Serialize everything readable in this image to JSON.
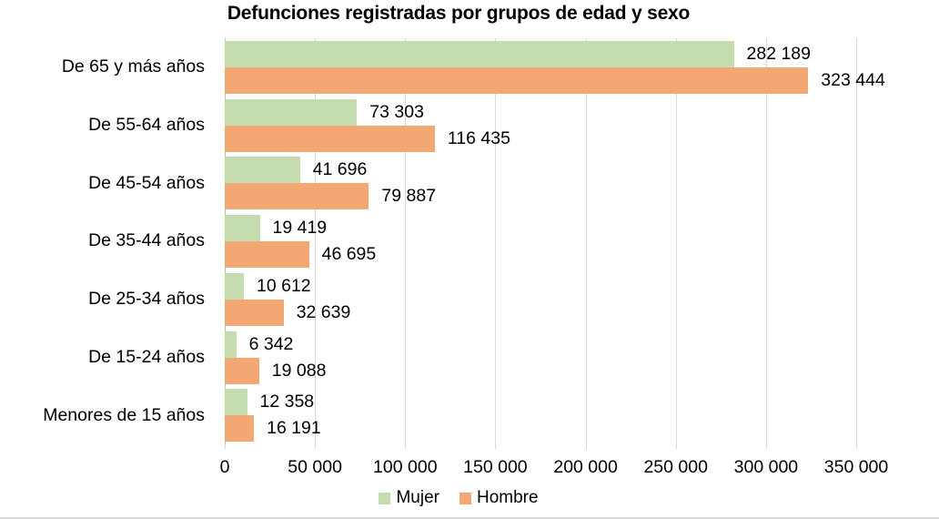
{
  "chart_data": {
    "type": "bar",
    "orientation": "horizontal",
    "title": "Defunciones registradas por grupos de edad y sexo",
    "categories": [
      "De 65 y más años",
      "De 55-64 años",
      "De 45-54 años",
      "De 35-44 años",
      "De 25-34 años",
      "De 15-24 años",
      "Menores de 15 años"
    ],
    "series": [
      {
        "name": "Mujer",
        "color": "#c5dcae",
        "values": [
          282189,
          73303,
          41696,
          19419,
          10612,
          6342,
          12358
        ],
        "labels": [
          "282 189",
          "73 303",
          "41 696",
          "19 419",
          "10 612",
          "6 342",
          "12 358"
        ]
      },
      {
        "name": "Hombre",
        "color": "#f3a873",
        "values": [
          323444,
          116435,
          79887,
          46695,
          32639,
          19088,
          16191
        ],
        "labels": [
          "323 444",
          "116 435",
          "79 887",
          "46 695",
          "32 639",
          "19 088",
          "16 191"
        ]
      }
    ],
    "xlim": [
      0,
      350000
    ],
    "x_ticks": [
      {
        "value": 0,
        "label": "0"
      },
      {
        "value": 50000,
        "label": "50 000"
      },
      {
        "value": 100000,
        "label": "100 000"
      },
      {
        "value": 150000,
        "label": "150 000"
      },
      {
        "value": 200000,
        "label": "200 000"
      },
      {
        "value": 250000,
        "label": "250 000"
      },
      {
        "value": 300000,
        "label": "300 000"
      },
      {
        "value": 350000,
        "label": "350 000"
      }
    ],
    "grid": "vertical",
    "gridline_color": "#d9d9d9",
    "axis_line_color": "#bfbfbf",
    "legend_position": "bottom"
  }
}
